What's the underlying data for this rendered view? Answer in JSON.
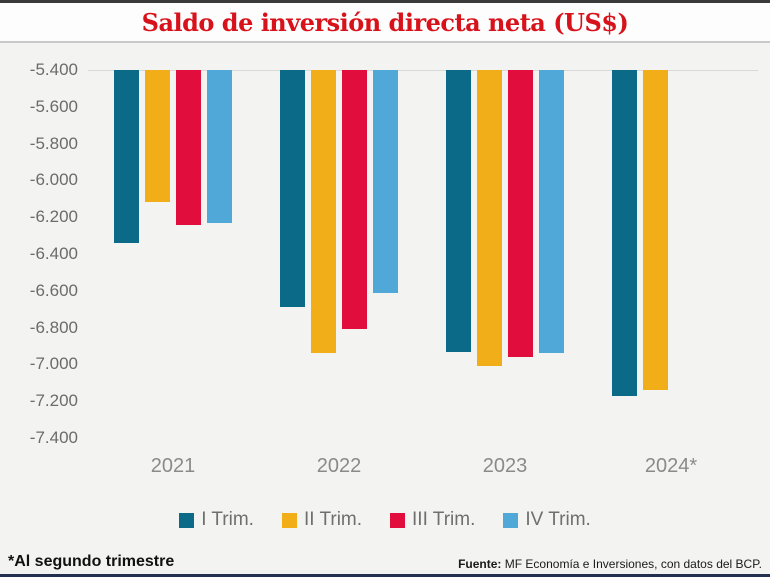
{
  "title": "Saldo de inversión directa neta (US$)",
  "footnote": "*Al segundo trimestre",
  "source": {
    "label": "Fuente:",
    "text": " MF Economía e Inversiones, con datos del BCP."
  },
  "chart_data": {
    "type": "bar",
    "title": "Saldo de inversión directa neta (US$)",
    "categories": [
      "2021",
      "2022",
      "2023",
      "2024*"
    ],
    "series": [
      {
        "name": "I Trim.",
        "color": "#0b6a87",
        "values": [
          -6340,
          -6690,
          -6930,
          -7170
        ]
      },
      {
        "name": "II Trim.",
        "color": "#f2ae18",
        "values": [
          -6120,
          -6940,
          -7010,
          -7140
        ]
      },
      {
        "name": "III Trim.",
        "color": "#e00d3d",
        "values": [
          -6240,
          -6810,
          -6960,
          null
        ]
      },
      {
        "name": "IV Trim.",
        "color": "#4fa8d8",
        "values": [
          -6230,
          -6610,
          -6940,
          null
        ]
      }
    ],
    "axis": {
      "top": -5400,
      "bottom": -7400,
      "tick_step": 200,
      "ticks": [
        "-5.400",
        "-5.600",
        "-5.800",
        "-6.000",
        "-6.200",
        "-6.400",
        "-6.600",
        "-6.800",
        "-7.000",
        "-7.200",
        "-7.400"
      ]
    },
    "grid": "baseline-only",
    "legend_position": "bottom"
  }
}
